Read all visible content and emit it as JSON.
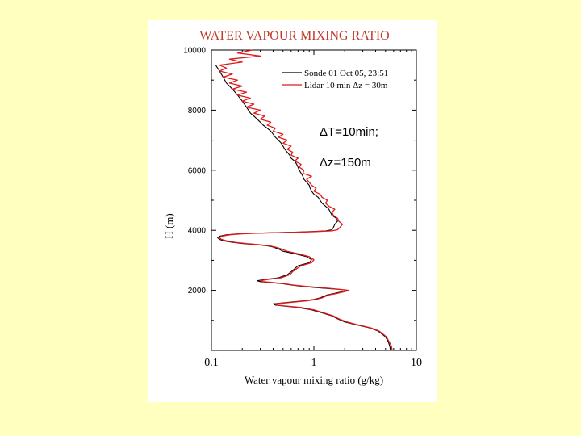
{
  "chart_data": {
    "type": "line",
    "title": "WATER VAPOUR MIXING RATIO",
    "xlabel": "Water vapour mixing ratio (g/kg)",
    "ylabel": "H (m)",
    "x_scale": "log",
    "xlim": [
      0.1,
      10
    ],
    "ylim": [
      0,
      10000
    ],
    "x_ticks": [
      0.1,
      1,
      10
    ],
    "x_tick_labels": [
      "0.1",
      "1",
      "10"
    ],
    "y_ticks": [
      2000,
      4000,
      6000,
      8000,
      10000
    ],
    "y_tick_labels": [
      "2000",
      "4000",
      "6000",
      "8000",
      "10000"
    ],
    "legend_position": "top-right",
    "annotations": [
      "ΔT=10min;",
      "Δz=150m"
    ],
    "colors": {
      "sonde": "#000000",
      "lidar": "#e01a1a",
      "title": "#c0392b"
    },
    "series": [
      {
        "name": "Sonde 01 Oct 05, 23:51",
        "color": "#000000",
        "points": [
          [
            5.6,
            0
          ],
          [
            5.5,
            150
          ],
          [
            5.3,
            300
          ],
          [
            5.0,
            450
          ],
          [
            4.6,
            550
          ],
          [
            4.2,
            650
          ],
          [
            3.5,
            750
          ],
          [
            2.6,
            850
          ],
          [
            2.0,
            950
          ],
          [
            1.7,
            1050
          ],
          [
            1.5,
            1150
          ],
          [
            1.2,
            1250
          ],
          [
            0.95,
            1350
          ],
          [
            0.7,
            1430
          ],
          [
            0.5,
            1480
          ],
          [
            0.42,
            1510
          ],
          [
            0.4,
            1550
          ],
          [
            0.55,
            1600
          ],
          [
            0.8,
            1650
          ],
          [
            1.0,
            1700
          ],
          [
            1.15,
            1750
          ],
          [
            1.25,
            1800
          ],
          [
            1.35,
            1850
          ],
          [
            1.6,
            1900
          ],
          [
            1.9,
            1960
          ],
          [
            2.1,
            2000
          ],
          [
            1.8,
            2030
          ],
          [
            1.4,
            2060
          ],
          [
            1.0,
            2100
          ],
          [
            0.75,
            2140
          ],
          [
            0.6,
            2180
          ],
          [
            0.5,
            2220
          ],
          [
            0.38,
            2260
          ],
          [
            0.3,
            2290
          ],
          [
            0.28,
            2320
          ],
          [
            0.33,
            2360
          ],
          [
            0.45,
            2420
          ],
          [
            0.55,
            2520
          ],
          [
            0.6,
            2620
          ],
          [
            0.65,
            2720
          ],
          [
            0.7,
            2820
          ],
          [
            0.9,
            2920
          ],
          [
            0.95,
            3020
          ],
          [
            0.85,
            3120
          ],
          [
            0.65,
            3220
          ],
          [
            0.5,
            3300
          ],
          [
            0.45,
            3380
          ],
          [
            0.4,
            3440
          ],
          [
            0.35,
            3480
          ],
          [
            0.28,
            3520
          ],
          [
            0.2,
            3560
          ],
          [
            0.16,
            3600
          ],
          [
            0.13,
            3650
          ],
          [
            0.12,
            3700
          ],
          [
            0.115,
            3750
          ],
          [
            0.12,
            3800
          ],
          [
            0.14,
            3850
          ],
          [
            0.18,
            3880
          ],
          [
            0.25,
            3900
          ],
          [
            0.4,
            3920
          ],
          [
            0.7,
            3940
          ],
          [
            1.0,
            3960
          ],
          [
            1.3,
            3980
          ],
          [
            1.5,
            4020
          ],
          [
            1.55,
            4100
          ],
          [
            1.6,
            4200
          ],
          [
            1.7,
            4300
          ],
          [
            1.65,
            4400
          ],
          [
            1.5,
            4500
          ],
          [
            1.45,
            4600
          ],
          [
            1.4,
            4700
          ],
          [
            1.3,
            4800
          ],
          [
            1.2,
            4900
          ],
          [
            1.15,
            5000
          ],
          [
            1.1,
            5100
          ],
          [
            1.0,
            5200
          ],
          [
            0.95,
            5300
          ],
          [
            0.92,
            5400
          ],
          [
            0.9,
            5500
          ],
          [
            0.85,
            5600
          ],
          [
            0.8,
            5700
          ],
          [
            0.78,
            5800
          ],
          [
            0.75,
            5900
          ],
          [
            0.72,
            6000
          ],
          [
            0.7,
            6100
          ],
          [
            0.68,
            6200
          ],
          [
            0.65,
            6300
          ],
          [
            0.6,
            6400
          ],
          [
            0.58,
            6500
          ],
          [
            0.55,
            6600
          ],
          [
            0.52,
            6700
          ],
          [
            0.5,
            6800
          ],
          [
            0.48,
            6900
          ],
          [
            0.45,
            7000
          ],
          [
            0.42,
            7100
          ],
          [
            0.4,
            7200
          ],
          [
            0.38,
            7300
          ],
          [
            0.35,
            7400
          ],
          [
            0.32,
            7500
          ],
          [
            0.3,
            7600
          ],
          [
            0.28,
            7700
          ],
          [
            0.26,
            7800
          ],
          [
            0.24,
            7900
          ],
          [
            0.23,
            8000
          ],
          [
            0.22,
            8100
          ],
          [
            0.21,
            8200
          ],
          [
            0.2,
            8300
          ],
          [
            0.19,
            8400
          ],
          [
            0.18,
            8500
          ],
          [
            0.17,
            8600
          ],
          [
            0.16,
            8700
          ],
          [
            0.15,
            8800
          ],
          [
            0.14,
            8900
          ],
          [
            0.135,
            9000
          ],
          [
            0.13,
            9100
          ],
          [
            0.125,
            9200
          ],
          [
            0.12,
            9300
          ],
          [
            0.115,
            9400
          ],
          [
            0.11,
            9500
          ]
        ]
      },
      {
        "name": "Lidar 10 min Δz = 30m",
        "color": "#e01a1a",
        "points": [
          [
            5.8,
            0
          ],
          [
            5.7,
            150
          ],
          [
            5.4,
            300
          ],
          [
            5.1,
            450
          ],
          [
            4.7,
            550
          ],
          [
            4.3,
            650
          ],
          [
            3.6,
            750
          ],
          [
            2.7,
            850
          ],
          [
            2.1,
            950
          ],
          [
            1.75,
            1050
          ],
          [
            1.55,
            1150
          ],
          [
            1.25,
            1250
          ],
          [
            1.0,
            1350
          ],
          [
            0.75,
            1430
          ],
          [
            0.52,
            1480
          ],
          [
            0.44,
            1510
          ],
          [
            0.42,
            1550
          ],
          [
            0.6,
            1600
          ],
          [
            0.85,
            1650
          ],
          [
            1.05,
            1700
          ],
          [
            1.2,
            1750
          ],
          [
            1.3,
            1800
          ],
          [
            1.4,
            1850
          ],
          [
            1.7,
            1900
          ],
          [
            2.0,
            1960
          ],
          [
            2.2,
            2000
          ],
          [
            1.85,
            2030
          ],
          [
            1.5,
            2060
          ],
          [
            1.1,
            2100
          ],
          [
            0.8,
            2140
          ],
          [
            0.62,
            2180
          ],
          [
            0.52,
            2220
          ],
          [
            0.4,
            2260
          ],
          [
            0.32,
            2290
          ],
          [
            0.3,
            2320
          ],
          [
            0.35,
            2360
          ],
          [
            0.48,
            2420
          ],
          [
            0.58,
            2520
          ],
          [
            0.62,
            2620
          ],
          [
            0.68,
            2720
          ],
          [
            0.75,
            2820
          ],
          [
            0.95,
            2920
          ],
          [
            1.0,
            3020
          ],
          [
            0.9,
            3120
          ],
          [
            0.7,
            3220
          ],
          [
            0.55,
            3300
          ],
          [
            0.48,
            3380
          ],
          [
            0.42,
            3440
          ],
          [
            0.37,
            3480
          ],
          [
            0.3,
            3520
          ],
          [
            0.22,
            3560
          ],
          [
            0.17,
            3600
          ],
          [
            0.14,
            3650
          ],
          [
            0.125,
            3700
          ],
          [
            0.12,
            3750
          ],
          [
            0.125,
            3800
          ],
          [
            0.15,
            3850
          ],
          [
            0.19,
            3880
          ],
          [
            0.27,
            3900
          ],
          [
            0.45,
            3920
          ],
          [
            0.8,
            3940
          ],
          [
            1.1,
            3960
          ],
          [
            1.5,
            3980
          ],
          [
            1.7,
            4020
          ],
          [
            1.8,
            4100
          ],
          [
            1.9,
            4200
          ],
          [
            1.75,
            4300
          ],
          [
            1.7,
            4400
          ],
          [
            1.55,
            4500
          ],
          [
            1.5,
            4600
          ],
          [
            1.6,
            4700
          ],
          [
            1.4,
            4800
          ],
          [
            1.3,
            4900
          ],
          [
            1.35,
            5000
          ],
          [
            1.2,
            5100
          ],
          [
            1.15,
            5200
          ],
          [
            1.0,
            5300
          ],
          [
            1.05,
            5400
          ],
          [
            0.95,
            5500
          ],
          [
            0.9,
            5600
          ],
          [
            0.85,
            5700
          ],
          [
            0.95,
            5800
          ],
          [
            0.78,
            5900
          ],
          [
            0.8,
            6000
          ],
          [
            0.72,
            6100
          ],
          [
            0.75,
            6200
          ],
          [
            0.65,
            6300
          ],
          [
            0.7,
            6400
          ],
          [
            0.6,
            6500
          ],
          [
            0.62,
            6600
          ],
          [
            0.55,
            6700
          ],
          [
            0.6,
            6800
          ],
          [
            0.5,
            6900
          ],
          [
            0.55,
            7000
          ],
          [
            0.45,
            7100
          ],
          [
            0.5,
            7200
          ],
          [
            0.4,
            7300
          ],
          [
            0.42,
            7400
          ],
          [
            0.35,
            7500
          ],
          [
            0.38,
            7600
          ],
          [
            0.3,
            7700
          ],
          [
            0.33,
            7800
          ],
          [
            0.26,
            7900
          ],
          [
            0.3,
            8000
          ],
          [
            0.22,
            8100
          ],
          [
            0.26,
            8200
          ],
          [
            0.2,
            8300
          ],
          [
            0.24,
            8400
          ],
          [
            0.18,
            8500
          ],
          [
            0.22,
            8600
          ],
          [
            0.16,
            8700
          ],
          [
            0.2,
            8800
          ],
          [
            0.15,
            8900
          ],
          [
            0.18,
            9000
          ],
          [
            0.13,
            9100
          ],
          [
            0.16,
            9200
          ],
          [
            0.12,
            9300
          ],
          [
            0.14,
            9400
          ],
          [
            0.12,
            9500
          ],
          [
            0.2,
            9600
          ],
          [
            0.15,
            9700
          ],
          [
            0.3,
            9800
          ],
          [
            0.18,
            9900
          ],
          [
            0.25,
            10000
          ]
        ]
      }
    ]
  }
}
